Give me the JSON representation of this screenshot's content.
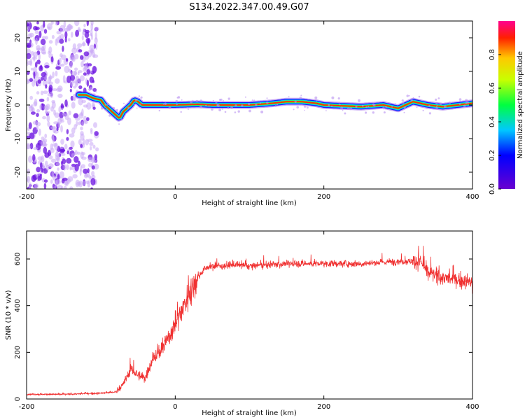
{
  "title": "S134.2022.347.00.49.G07",
  "chart_data": [
    {
      "type": "heatmap",
      "xlabel": "Height of straight line (km)",
      "ylabel": "Frequency (Hz)",
      "xlim": [
        -200,
        400
      ],
      "ylim": [
        -25,
        25
      ],
      "xticks": [
        -200,
        0,
        200,
        400
      ],
      "yticks": [
        -20,
        -10,
        0,
        10,
        20
      ],
      "colorbar": {
        "label": "Normalized spectral amplitude",
        "range": [
          0,
          1
        ],
        "ticks": [
          0.0,
          0.2,
          0.4,
          0.6,
          0.8
        ]
      },
      "ridge": {
        "x": [
          -130,
          -120,
          -110,
          -100,
          -95,
          -90,
          -85,
          -80,
          -75,
          -70,
          -65,
          -60,
          -55,
          -50,
          -45,
          -40,
          -30,
          0,
          30,
          50,
          100,
          130,
          150,
          170,
          190,
          200,
          250,
          280,
          300,
          320,
          340,
          360,
          380,
          400
        ],
        "y": [
          3,
          3,
          2,
          1.5,
          0,
          -1,
          -2,
          -3,
          -4,
          -2,
          -1,
          0,
          1.5,
          1,
          0,
          0,
          0,
          0,
          0.2,
          0,
          0,
          0.5,
          1,
          1,
          0.5,
          0,
          -0.5,
          0,
          -1,
          1,
          0,
          -0.5,
          0,
          0.5
        ]
      },
      "noise_region_x": [
        -200,
        -105
      ]
    },
    {
      "type": "line",
      "xlabel": "Height of straight line (km)",
      "ylabel": "SNR (10 * v/v)",
      "xlim": [
        -200,
        400
      ],
      "ylim": [
        0,
        720
      ],
      "xticks": [
        -200,
        0,
        200,
        400
      ],
      "yticks": [
        0,
        200,
        400,
        600
      ],
      "color": "#f03030",
      "series": [
        {
          "x": [
            -200,
            -150,
            -100,
            -80,
            -70,
            -60,
            -50,
            -40,
            -30,
            -20,
            -10,
            0,
            10,
            20,
            30,
            40,
            50,
            60,
            80,
            100,
            150,
            200,
            250,
            300,
            330,
            340,
            360,
            380,
            400
          ],
          "y": [
            20,
            20,
            25,
            30,
            60,
            130,
            100,
            90,
            180,
            200,
            260,
            320,
            390,
            460,
            520,
            560,
            570,
            570,
            575,
            570,
            580,
            580,
            580,
            590,
            590,
            540,
            520,
            510,
            500
          ]
        }
      ]
    }
  ]
}
